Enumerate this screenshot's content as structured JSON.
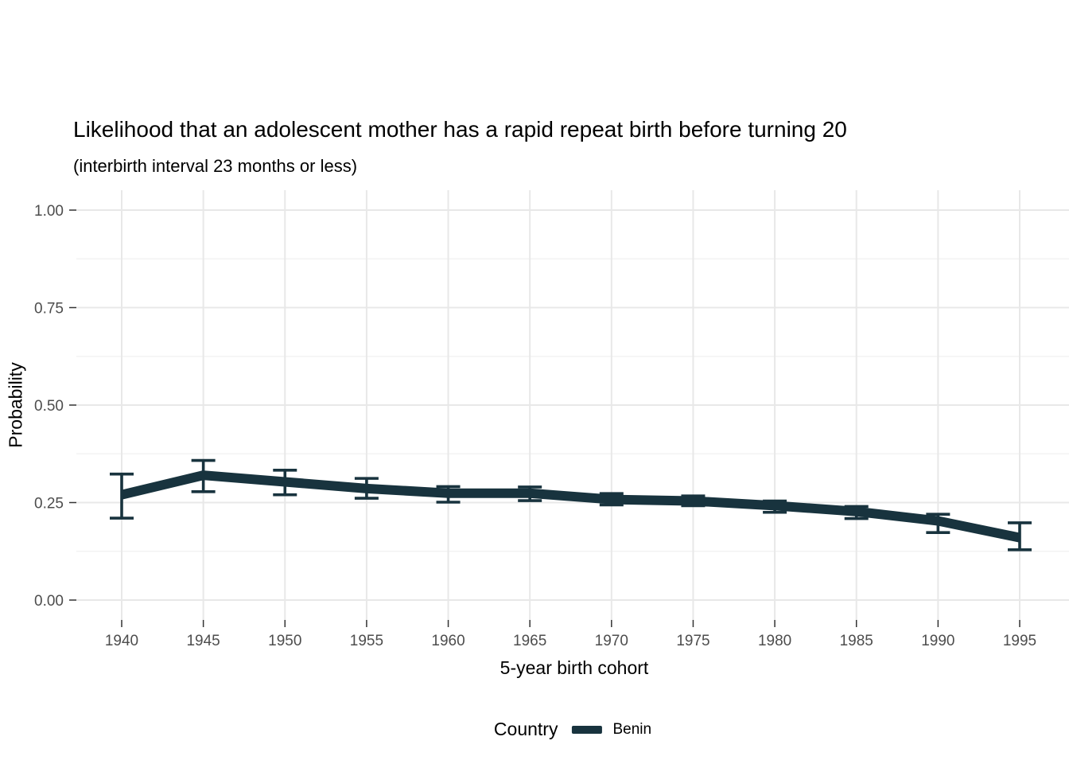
{
  "page": {
    "background": "#ffffff"
  },
  "chart_data": {
    "type": "line",
    "title": "Likelihood that an adolescent mother has a rapid repeat birth before turning 20",
    "subtitle": "(interbirth interval 23 months or less)",
    "xlabel": "5-year birth cohort",
    "ylabel": "Probability",
    "x": [
      1940,
      1945,
      1950,
      1955,
      1960,
      1965,
      1970,
      1975,
      1980,
      1985,
      1990,
      1995
    ],
    "xtick_labels": [
      "1940",
      "1945",
      "1950",
      "1955",
      "1960",
      "1965",
      "1970",
      "1975",
      "1980",
      "1985",
      "1990",
      "1995"
    ],
    "series": [
      {
        "name": "Benin",
        "values": [
          0.27,
          0.32,
          0.303,
          0.286,
          0.274,
          0.274,
          0.258,
          0.254,
          0.242,
          0.227,
          0.203,
          0.16
        ],
        "ci_lower": [
          0.21,
          0.278,
          0.27,
          0.261,
          0.251,
          0.255,
          0.244,
          0.242,
          0.225,
          0.209,
          0.173,
          0.129
        ],
        "ci_upper": [
          0.323,
          0.358,
          0.333,
          0.312,
          0.291,
          0.29,
          0.273,
          0.267,
          0.254,
          0.24,
          0.22,
          0.198
        ],
        "color": "#18333E"
      }
    ],
    "ylim": [
      0,
      1
    ],
    "ytick_values": [
      0.0,
      0.25,
      0.5,
      0.75,
      1.0
    ],
    "ytick_labels": [
      "0.00",
      "0.25",
      "0.50",
      "0.75",
      "1.00"
    ],
    "minor_ytick_values": [
      0.125,
      0.375,
      0.625,
      0.875
    ],
    "grid": "on",
    "legend": {
      "position": "bottom",
      "title": "Country",
      "entries": [
        {
          "label": "Benin",
          "color": "#18333E"
        }
      ]
    }
  },
  "colors": {
    "line": "#18333E",
    "grid_major": "#e8e8e8",
    "grid_minor": "#f3f3f3",
    "axis_tick": "#333333",
    "tick_label": "#4d4d4d"
  }
}
